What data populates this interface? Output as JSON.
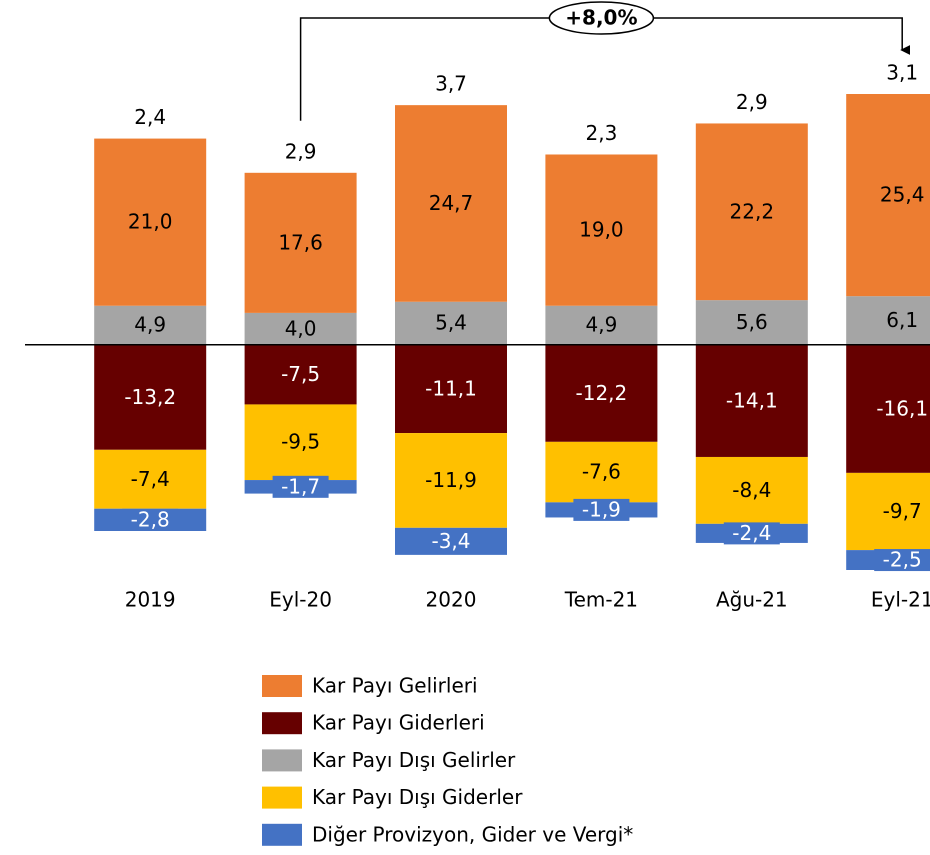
{
  "chart_data": {
    "type": "bar",
    "categories": [
      "2019",
      "Eyl-20",
      "2020",
      "Tem-21",
      "Ağu-21",
      "Eyl-21"
    ],
    "series": [
      {
        "name": "Kar Payı Gelirleri",
        "color": "#ED7D31",
        "values": [
          21.0,
          17.6,
          24.7,
          19.0,
          22.2,
          25.4
        ],
        "value_labels": [
          "21,0",
          "17,6",
          "24,7",
          "19,0",
          "22,2",
          "25,4"
        ]
      },
      {
        "name": "Kar Payı Giderleri",
        "color": "#660000",
        "values": [
          -13.2,
          -7.5,
          -11.1,
          -12.2,
          -14.1,
          -16.1
        ],
        "value_labels": [
          "-13,2",
          "-7,5",
          "-11,1",
          "-12,2",
          "-14,1",
          "-16,1"
        ]
      },
      {
        "name": "Kar Payı Dışı Gelirler",
        "color": "#A5A5A5",
        "values": [
          4.9,
          4.0,
          5.4,
          4.9,
          5.6,
          6.1
        ],
        "value_labels": [
          "4,9",
          "4,0",
          "5,4",
          "4,9",
          "5,6",
          "6,1"
        ]
      },
      {
        "name": "Kar Payı Dışı Giderler",
        "color": "#FFC000",
        "values": [
          -7.4,
          -9.5,
          -11.9,
          -7.6,
          -8.4,
          -9.7
        ],
        "value_labels": [
          "-7,4",
          "-9,5",
          "-11,9",
          "-7,6",
          "-8,4",
          "-9,7"
        ]
      },
      {
        "name": "Diğer Provizyon, Gider ve Vergi*",
        "color": "#4472C4",
        "values": [
          -2.8,
          -1.7,
          -3.4,
          -1.9,
          -2.4,
          -2.5
        ],
        "value_labels": [
          "-2,8",
          "-1,7",
          "-3,4",
          "-1,9",
          "-2,4",
          "-2,5"
        ]
      }
    ],
    "totals": [
      2.4,
      2.9,
      3.7,
      2.3,
      2.9,
      3.1
    ],
    "total_labels": [
      "2,4",
      "2,9",
      "3,7",
      "2,3",
      "2,9",
      "3,1"
    ],
    "annotation": "+8,0%"
  }
}
